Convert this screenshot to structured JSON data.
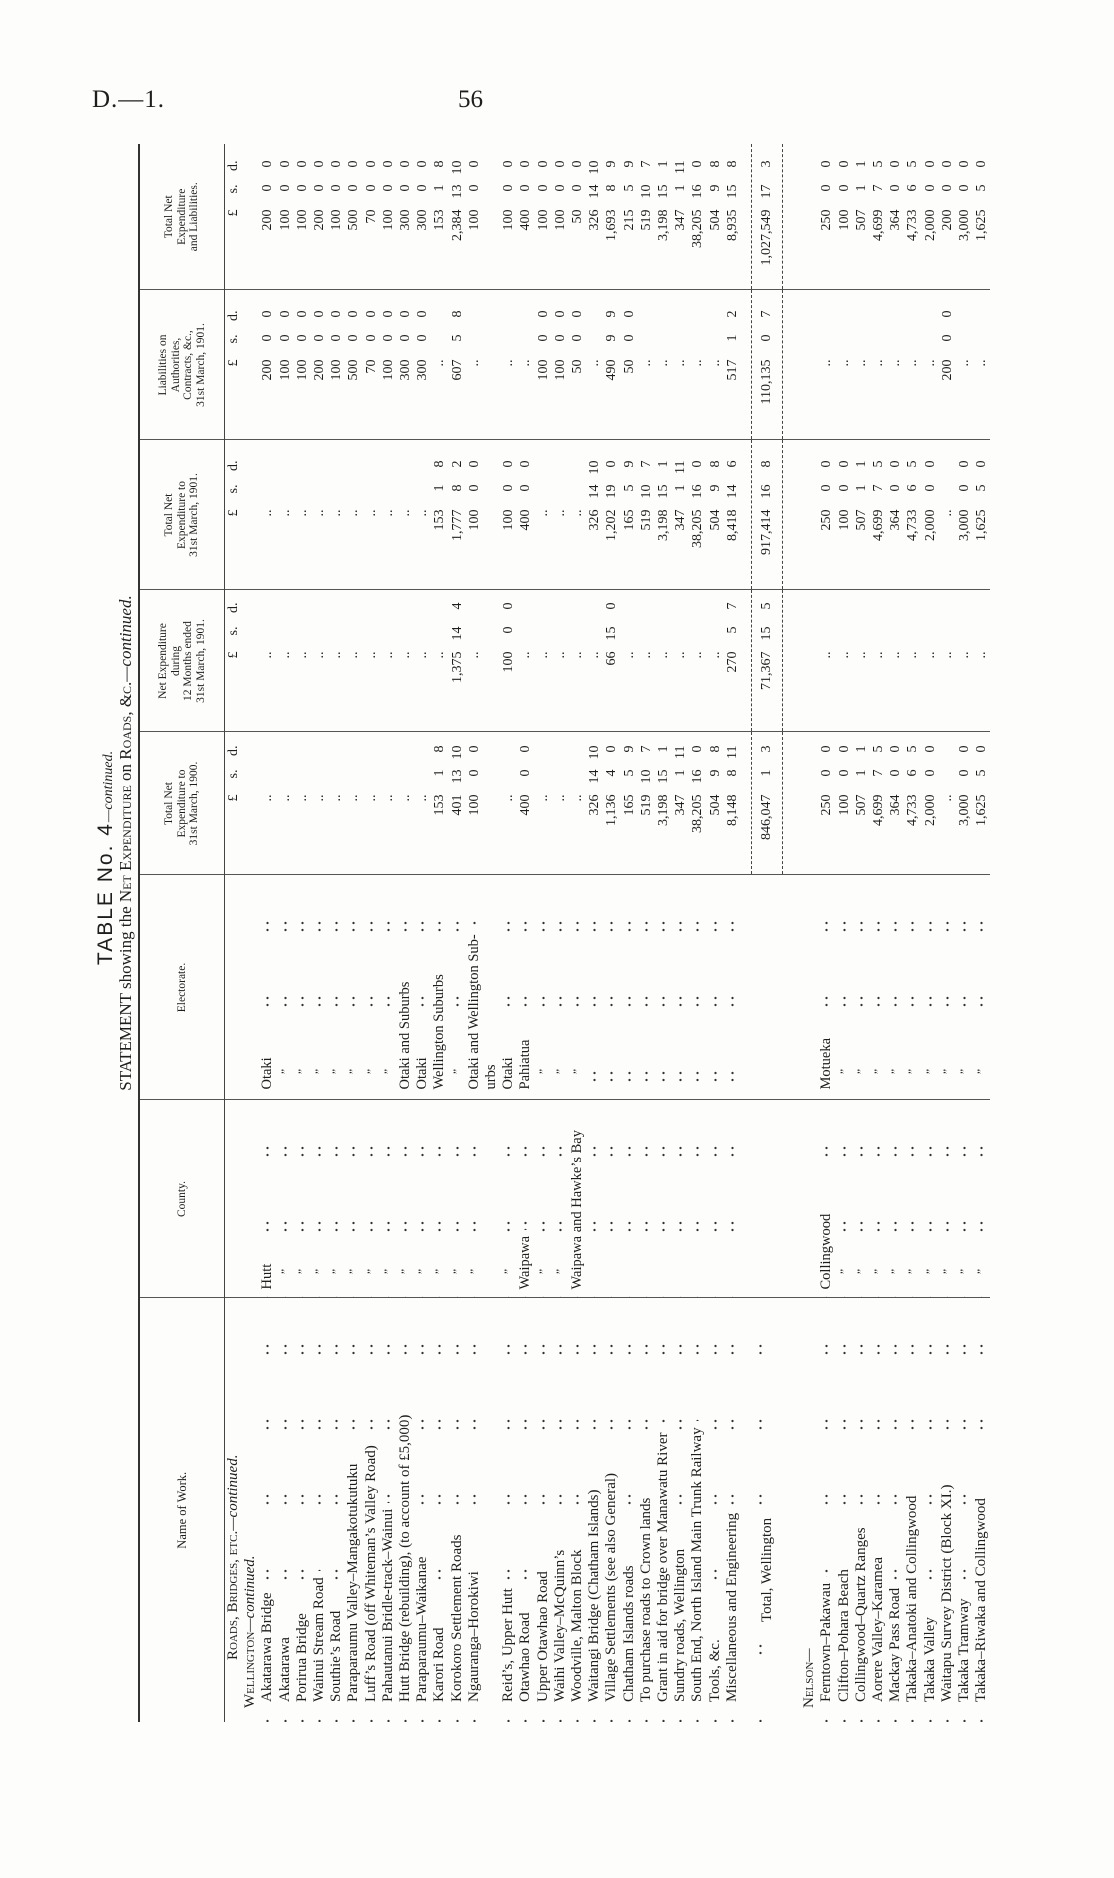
{
  "page_header": {
    "doc_ref": "D.—1.",
    "page_number": "56"
  },
  "title": {
    "table": "TABLE No. 4",
    "continued": "—continued.",
    "statement_a": "STATEMENT showing the ",
    "statement_b": "Net Expenditure",
    "statement_c": " on ",
    "statement_d": "Roads, &c.",
    "statement_e": "—continued."
  },
  "columns": [
    "Name of Work.",
    "County.",
    "Electorate.",
    "Total Net\nExpenditure to\n31st March, 1900.",
    "Net Expenditure\nduring\n12 Months ended\n31st March, 1901.",
    "Total Net\nExpenditure to\n31st March, 1901.",
    "Liabilities on\nAuthorities,\nContracts, &c.,\n31st March, 1901.",
    "Total Net\nExpenditure\nand Liabilities."
  ],
  "currency_units": [
    "£",
    "s.",
    "d."
  ],
  "rows": [
    {
      "type": "heading",
      "text": "Roads, Bridges, etc.",
      "suffix": "—continued."
    },
    {
      "type": "heading",
      "text": "Wellington",
      "suffix": "—continued."
    },
    {
      "type": "item",
      "name": "Akatarawa Bridge",
      "county": "Hutt",
      "electorate": "Otaki",
      "values": [
        "..",
        "..",
        "..",
        [
          "200",
          "0",
          "0"
        ],
        [
          "200",
          "0",
          "0"
        ]
      ]
    },
    {
      "type": "item",
      "name": "Akatarawa",
      "county": "”",
      "electorate": "”",
      "values": [
        "..",
        "..",
        "..",
        [
          "100",
          "0",
          "0"
        ],
        [
          "100",
          "0",
          "0"
        ]
      ]
    },
    {
      "type": "item",
      "name": "Porirua Bridge",
      "county": "”",
      "electorate": "”",
      "values": [
        "..",
        "..",
        "..",
        [
          "100",
          "0",
          "0"
        ],
        [
          "100",
          "0",
          "0"
        ]
      ]
    },
    {
      "type": "item",
      "name": "Wainui Stream Road",
      "county": "”",
      "electorate": "”",
      "values": [
        "..",
        "..",
        "..",
        [
          "200",
          "0",
          "0"
        ],
        [
          "200",
          "0",
          "0"
        ]
      ]
    },
    {
      "type": "item",
      "name": "Southie’s Road",
      "county": "”",
      "electorate": "”",
      "values": [
        "..",
        "..",
        "..",
        [
          "100",
          "0",
          "0"
        ],
        [
          "100",
          "0",
          "0"
        ]
      ]
    },
    {
      "type": "item",
      "name": "Paraparaumu Valley–Mangakotukutuku",
      "county": "”",
      "electorate": "”",
      "values": [
        "..",
        "..",
        "..",
        [
          "500",
          "0",
          "0"
        ],
        [
          "500",
          "0",
          "0"
        ]
      ]
    },
    {
      "type": "item",
      "name": "Luff’s Road (off Whiteman’s Valley Road)",
      "county": "”",
      "electorate": "”",
      "values": [
        "..",
        "..",
        "..",
        [
          "70",
          "0",
          "0"
        ],
        [
          "70",
          "0",
          "0"
        ]
      ]
    },
    {
      "type": "item",
      "name": "Pahautanui Bridle-track–Wainui",
      "county": "”",
      "electorate": "”",
      "values": [
        "..",
        "..",
        "..",
        [
          "100",
          "0",
          "0"
        ],
        [
          "100",
          "0",
          "0"
        ]
      ]
    },
    {
      "type": "item",
      "name": "Hutt Bridge (rebuilding), (to account of £5,000)",
      "county": "”",
      "electorate": "Otaki and Suburbs",
      "values": [
        "..",
        "..",
        "..",
        [
          "300",
          "0",
          "0"
        ],
        [
          "300",
          "0",
          "0"
        ]
      ]
    },
    {
      "type": "item",
      "name": "Paraparaumu–Waikanae",
      "county": "”",
      "electorate": "Otaki",
      "values": [
        "..",
        "..",
        "..",
        [
          "300",
          "0",
          "0"
        ],
        [
          "300",
          "0",
          "0"
        ]
      ]
    },
    {
      "type": "item",
      "name": "Karori Road",
      "county": "”",
      "electorate": "Wellington Suburbs",
      "values": [
        [
          "153",
          "1",
          "8"
        ],
        "..",
        [
          "153",
          "1",
          "8"
        ],
        "..",
        [
          "153",
          "1",
          "8"
        ]
      ]
    },
    {
      "type": "item",
      "name": "Korokoro Settlement Roads",
      "county": "”",
      "electorate": "”",
      "values": [
        [
          "401",
          "13",
          "10"
        ],
        [
          "1,375",
          "14",
          "4"
        ],
        [
          "1,777",
          "8",
          "2"
        ],
        [
          "607",
          "5",
          "8"
        ],
        [
          "2,384",
          "13",
          "10"
        ]
      ]
    },
    {
      "type": "item",
      "name": "Ngauranga–Horokiwi",
      "county": "”",
      "electorate": "Otaki and Wellington Sub-\nurbs",
      "values": [
        [
          "100",
          "0",
          "0"
        ],
        "..",
        [
          "100",
          "0",
          "0"
        ],
        "..",
        [
          "100",
          "0",
          "0"
        ]
      ]
    },
    {
      "type": "item",
      "name": "Reid’s, Upper Hutt",
      "county": "”",
      "electorate": "Otaki",
      "values": [
        "..",
        [
          "100",
          "0",
          "0"
        ],
        [
          "100",
          "0",
          "0"
        ],
        "..",
        [
          "100",
          "0",
          "0"
        ]
      ]
    },
    {
      "type": "item",
      "name": "Otawhao Road",
      "county": "Waipawa",
      "electorate": "Pahiatua",
      "values": [
        [
          "400",
          "0",
          "0"
        ],
        "..",
        [
          "400",
          "0",
          "0"
        ],
        "..",
        [
          "400",
          "0",
          "0"
        ]
      ]
    },
    {
      "type": "item",
      "name": "Upper Otawhao Road",
      "county": "”",
      "electorate": "”",
      "values": [
        "..",
        "..",
        "..",
        [
          "100",
          "0",
          "0"
        ],
        [
          "100",
          "0",
          "0"
        ]
      ]
    },
    {
      "type": "item",
      "name": "Waihi Valley–McQuinn’s",
      "county": "”",
      "electorate": "”",
      "values": [
        "..",
        "..",
        "..",
        [
          "100",
          "0",
          "0"
        ],
        [
          "100",
          "0",
          "0"
        ]
      ]
    },
    {
      "type": "item",
      "name": "Woodville, Malton Block",
      "county": "Waipawa and Hawke’s Bay",
      "electorate": "”",
      "values": [
        "..",
        "..",
        "..",
        [
          "50",
          "0",
          "0"
        ],
        [
          "50",
          "0",
          "0"
        ]
      ]
    },
    {
      "type": "item",
      "name": "Waitangi Bridge (Chatham Islands)",
      "county": "",
      "electorate": "",
      "values": [
        [
          "326",
          "14",
          "10"
        ],
        "..",
        [
          "326",
          "14",
          "10"
        ],
        "..",
        [
          "326",
          "14",
          "10"
        ]
      ]
    },
    {
      "type": "item",
      "name": "Village Settlements (see also General)",
      "county": "",
      "electorate": "",
      "values": [
        [
          "1,136",
          "4",
          "0"
        ],
        [
          "66",
          "15",
          "0"
        ],
        [
          "1,202",
          "19",
          "0"
        ],
        [
          "490",
          "9",
          "9"
        ],
        [
          "1,693",
          "8",
          "9"
        ]
      ]
    },
    {
      "type": "item",
      "name": "Chatham Islands roads",
      "county": "",
      "electorate": "",
      "values": [
        [
          "165",
          "5",
          "9"
        ],
        "..",
        [
          "165",
          "5",
          "9"
        ],
        [
          "50",
          "0",
          "0"
        ],
        [
          "215",
          "5",
          "9"
        ]
      ]
    },
    {
      "type": "item",
      "name": "To purchase roads to Crown lands",
      "county": "",
      "electorate": "",
      "values": [
        [
          "519",
          "10",
          "7"
        ],
        "..",
        [
          "519",
          "10",
          "7"
        ],
        "..",
        [
          "519",
          "10",
          "7"
        ]
      ]
    },
    {
      "type": "item",
      "name": "Grant in aid for bridge over Manawatu River",
      "county": "",
      "electorate": "",
      "values": [
        [
          "3,198",
          "15",
          "1"
        ],
        "..",
        [
          "3,198",
          "15",
          "1"
        ],
        "..",
        [
          "3,198",
          "15",
          "1"
        ]
      ]
    },
    {
      "type": "item",
      "name": "Sundry roads, Wellington",
      "county": "",
      "electorate": "",
      "values": [
        [
          "347",
          "1",
          "11"
        ],
        "..",
        [
          "347",
          "1",
          "11"
        ],
        "..",
        [
          "347",
          "1",
          "11"
        ]
      ]
    },
    {
      "type": "item",
      "name": "South End, North Island Main Trunk Railway",
      "county": "",
      "electorate": "",
      "values": [
        [
          "38,205",
          "16",
          "0"
        ],
        "..",
        [
          "38,205",
          "16",
          "0"
        ],
        "..",
        [
          "38,205",
          "16",
          "0"
        ]
      ]
    },
    {
      "type": "item",
      "name": "Tools, &c.",
      "county": "",
      "electorate": "",
      "values": [
        [
          "504",
          "9",
          "8"
        ],
        "..",
        [
          "504",
          "9",
          "8"
        ],
        "..",
        [
          "504",
          "9",
          "8"
        ]
      ]
    },
    {
      "type": "item",
      "name": "Miscellaneous and Engineering",
      "county": "",
      "electorate": "",
      "values": [
        [
          "8,148",
          "8",
          "11"
        ],
        [
          "270",
          "5",
          "7"
        ],
        [
          "8,418",
          "14",
          "6"
        ],
        [
          "517",
          "1",
          "2"
        ],
        [
          "8,935",
          "15",
          "8"
        ]
      ]
    },
    {
      "type": "spacer"
    },
    {
      "type": "total",
      "name": "Total, Wellington",
      "values": [
        [
          "846,047",
          "1",
          "3"
        ],
        [
          "71,367",
          "15",
          "5"
        ],
        [
          "917,414",
          "16",
          "8"
        ],
        [
          "110,135",
          "0",
          "7"
        ],
        [
          "1,027,549",
          "17",
          "3"
        ]
      ]
    },
    {
      "type": "spacer2"
    },
    {
      "type": "heading",
      "text": "Nelson",
      "suffix": "—"
    },
    {
      "type": "item",
      "name": "Ferntown–Pakawau",
      "county": "Collingwood",
      "electorate": "Motueka",
      "values": [
        [
          "250",
          "0",
          "0"
        ],
        "..",
        [
          "250",
          "0",
          "0"
        ],
        "..",
        [
          "250",
          "0",
          "0"
        ]
      ]
    },
    {
      "type": "item",
      "name": "Clifton–Pohara Beach",
      "county": "”",
      "electorate": "”",
      "values": [
        [
          "100",
          "0",
          "0"
        ],
        "..",
        [
          "100",
          "0",
          "0"
        ],
        "..",
        [
          "100",
          "0",
          "0"
        ]
      ]
    },
    {
      "type": "item",
      "name": "Collingwood–Quartz Ranges",
      "county": "”",
      "electorate": "”",
      "values": [
        [
          "507",
          "1",
          "1"
        ],
        "..",
        [
          "507",
          "1",
          "1"
        ],
        "..",
        [
          "507",
          "1",
          "1"
        ]
      ]
    },
    {
      "type": "item",
      "name": "Aorere Valley–Karamea",
      "county": "”",
      "electorate": "”",
      "values": [
        [
          "4,699",
          "7",
          "5"
        ],
        "..",
        [
          "4,699",
          "7",
          "5"
        ],
        "..",
        [
          "4,699",
          "7",
          "5"
        ]
      ]
    },
    {
      "type": "item",
      "name": "Mackay Pass Road",
      "county": "”",
      "electorate": "”",
      "values": [
        [
          "364",
          "0",
          "0"
        ],
        "..",
        [
          "364",
          "0",
          "0"
        ],
        "..",
        [
          "364",
          "0",
          "0"
        ]
      ]
    },
    {
      "type": "item",
      "name": "Takaka–Anatoki and Collingwood",
      "county": "”",
      "electorate": "”",
      "values": [
        [
          "4,733",
          "6",
          "5"
        ],
        "..",
        [
          "4,733",
          "6",
          "5"
        ],
        "..",
        [
          "4,733",
          "6",
          "5"
        ]
      ]
    },
    {
      "type": "item",
      "name": "Takaka Valley",
      "county": "”",
      "electorate": "”",
      "values": [
        [
          "2,000",
          "0",
          "0"
        ],
        "..",
        [
          "2,000",
          "0",
          "0"
        ],
        "..",
        [
          "2,000",
          "0",
          "0"
        ]
      ]
    },
    {
      "type": "item",
      "name": "Waitapu Survey District (Block XI.)",
      "county": "”",
      "electorate": "”",
      "values": [
        "..",
        "..",
        "..",
        [
          "200",
          "0",
          "0"
        ],
        [
          "200",
          "0",
          "0"
        ]
      ]
    },
    {
      "type": "item",
      "name": "Takaka Tramway",
      "county": "”",
      "electorate": "”",
      "values": [
        [
          "3,000",
          "0",
          "0"
        ],
        "..",
        [
          "3,000",
          "0",
          "0"
        ],
        "..",
        [
          "3,000",
          "0",
          "0"
        ]
      ]
    },
    {
      "type": "item",
      "name": "Takaka–Riwaka and Collingwood",
      "county": "”",
      "electorate": "”",
      "values": [
        [
          "1,625",
          "5",
          "0"
        ],
        "..",
        [
          "1,625",
          "5",
          "0"
        ],
        "..",
        [
          "1,625",
          "5",
          "0"
        ]
      ]
    }
  ]
}
